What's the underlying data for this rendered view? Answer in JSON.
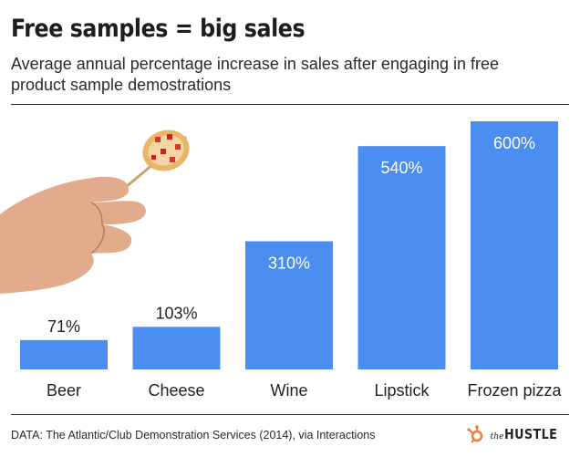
{
  "header": {
    "title": "Free samples = big sales",
    "subtitle": "Average annual percentage increase in sales after engaging in free product sample demostrations"
  },
  "chart_data": {
    "type": "bar",
    "categories": [
      "Beer",
      "Cheese",
      "Wine",
      "Lipstick",
      "Frozen pizza"
    ],
    "values": [
      71,
      103,
      310,
      540,
      600
    ],
    "data_labels": [
      "71%",
      "103%",
      "310%",
      "540%",
      "600%"
    ],
    "ylim": [
      0,
      600
    ],
    "bar_color": "#4b8df0",
    "grid": false,
    "legend": "none"
  },
  "footer": {
    "source": "DATA: The Atlantic/Club Demonstration Services (2014), via Interactions",
    "brand_small": "the",
    "brand_big": "HUSTLE",
    "brand_icon": "hubspot-sprocket-icon",
    "brand_icon_color": "#f47b38"
  }
}
